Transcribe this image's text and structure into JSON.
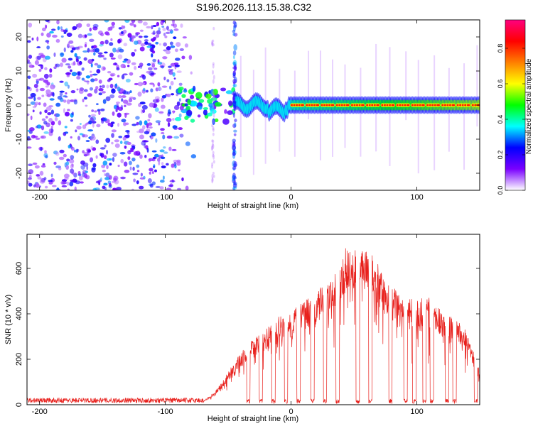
{
  "title": "S196.2026.113.15.38.C32",
  "chart_data": [
    {
      "type": "heatmap",
      "xlabel": "Height of straight line (km)",
      "ylabel": "Frequency (Hz)",
      "xlim": [
        -210,
        150
      ],
      "ylim": [
        -25,
        25
      ],
      "xticks": [
        -200,
        -100,
        0,
        100
      ],
      "yticks": [
        -20,
        -10,
        0,
        10,
        20
      ],
      "colorbar": {
        "label": "Normalized spectral amplitude",
        "range": [
          0,
          0.96
        ],
        "ticks": [
          0.0,
          0.2,
          0.4,
          0.6,
          0.8
        ],
        "colors": [
          "#ffffff",
          "#7a00ff",
          "#0000ff",
          "#00ffff",
          "#00ff00",
          "#ffff00",
          "#ff7f00",
          "#ff0000",
          "#ff007f"
        ]
      },
      "regions": [
        {
          "name": "noise",
          "x": [
            -210,
            -75
          ],
          "freq": [
            -25,
            25
          ],
          "amplitude": [
            0.0,
            0.3
          ]
        },
        {
          "name": "onset",
          "x": [
            -90,
            -45
          ],
          "freq": [
            -5,
            5
          ],
          "amplitude": [
            0.1,
            0.5
          ]
        },
        {
          "name": "carrier",
          "x": [
            -45,
            150
          ],
          "freq": [
            -3,
            3
          ],
          "amplitude": [
            0.2,
            0.96
          ]
        },
        {
          "name": "spike",
          "x": [
            -45,
            -45
          ],
          "freq": [
            -25,
            25
          ],
          "amplitude": [
            0.1,
            0.3
          ]
        }
      ]
    },
    {
      "type": "line",
      "xlabel": "Height of straight line (km)",
      "ylabel": "SNR (10 * v/v)",
      "xlim": [
        -210,
        150
      ],
      "ylim": [
        0,
        750
      ],
      "xticks": [
        -200,
        -100,
        0,
        100
      ],
      "yticks": [
        0,
        200,
        400,
        600
      ],
      "color": "#e8201c",
      "envelope": {
        "x": [
          -210,
          -70,
          -60,
          -40,
          -30,
          -20,
          -10,
          0,
          10,
          20,
          30,
          40,
          45,
          50,
          60,
          70,
          80,
          90,
          100,
          110,
          120,
          130,
          140,
          150
        ],
        "y": [
          15,
          15,
          60,
          230,
          290,
          330,
          390,
          410,
          460,
          490,
          560,
          630,
          720,
          680,
          700,
          610,
          520,
          480,
          470,
          470,
          420,
          390,
          330,
          145
        ]
      },
      "dropouts_x": [
        -34,
        -24,
        -14,
        -4,
        6,
        17,
        27,
        37,
        53,
        63,
        79,
        91,
        98,
        106,
        112,
        124,
        130,
        147
      ]
    }
  ]
}
